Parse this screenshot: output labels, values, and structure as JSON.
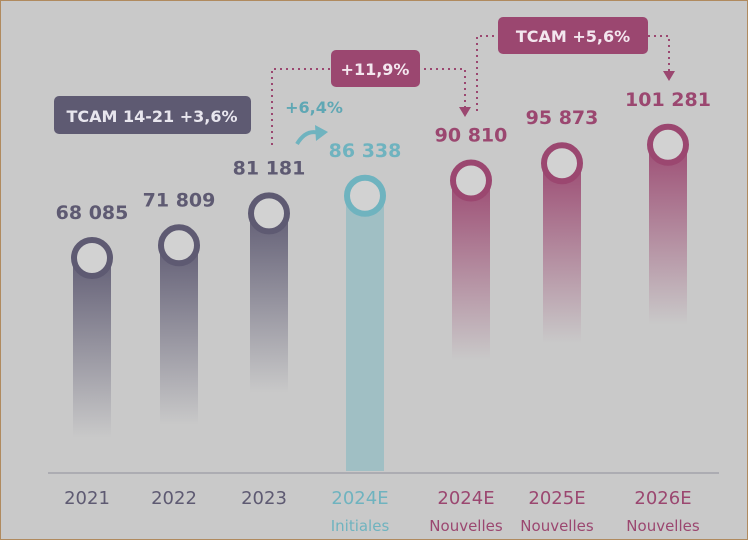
{
  "chart_data": {
    "type": "bar",
    "categories": [
      {
        "line1": "2021",
        "line2": ""
      },
      {
        "line1": "2022",
        "line2": ""
      },
      {
        "line1": "2023",
        "line2": ""
      },
      {
        "line1": "2024E",
        "line2": "Initiales"
      },
      {
        "line1": "2024E",
        "line2": "Nouvelles"
      },
      {
        "line1": "2025E",
        "line2": "Nouvelles"
      },
      {
        "line1": "2026E",
        "line2": "Nouvelles"
      }
    ],
    "values": [
      68085,
      71809,
      81181,
      86338,
      90810,
      95873,
      101281
    ],
    "value_labels": [
      "68 085",
      "71 809",
      "81 181",
      "86 338",
      "90 810",
      "95 873",
      "101 281"
    ],
    "groups": [
      "historical",
      "historical",
      "historical",
      "initial",
      "new",
      "new",
      "new"
    ],
    "colors": {
      "historical": "#5e5a72",
      "initial": "#6fb3bf",
      "new": "#9b4770"
    },
    "annotations": {
      "tcam_hist": "TCAM 14-21 +3,6%",
      "growth_initial": "+6,4%",
      "growth_new": "+11,9%",
      "tcam_new": "TCAM +5,6%"
    }
  }
}
